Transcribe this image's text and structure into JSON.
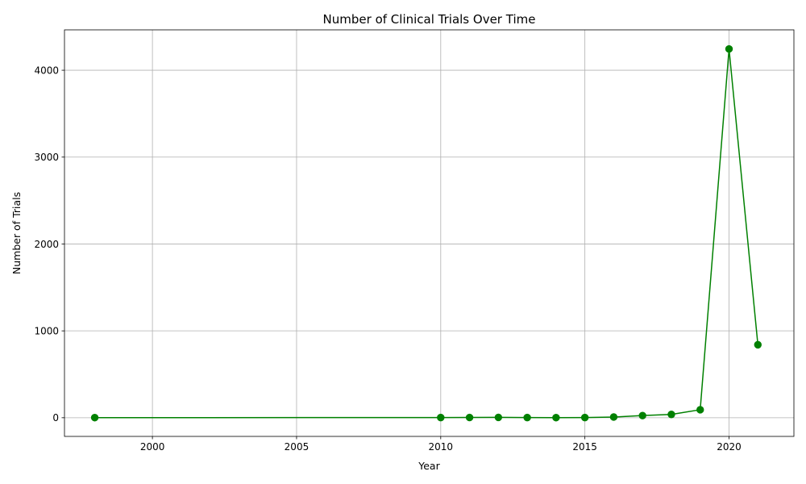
{
  "chart_data": {
    "type": "line",
    "title": "Number of Clinical Trials Over Time",
    "xlabel": "Year",
    "ylabel": "Number of Trials",
    "xlim": [
      1996.95,
      2022.25
    ],
    "ylim": [
      -215,
      4465
    ],
    "x_ticks": [
      2000,
      2005,
      2010,
      2015,
      2020
    ],
    "y_ticks": [
      0,
      1000,
      2000,
      3000,
      4000
    ],
    "grid": true,
    "series": [
      {
        "color": "#008000",
        "marker": "circle",
        "x": [
          1998,
          2010,
          2011,
          2012,
          2013,
          2014,
          2015,
          2016,
          2017,
          2018,
          2019,
          2020,
          2021
        ],
        "y": [
          1,
          2,
          3,
          4,
          2,
          1,
          2,
          8,
          25,
          38,
          92,
          4245,
          840
        ]
      }
    ]
  }
}
